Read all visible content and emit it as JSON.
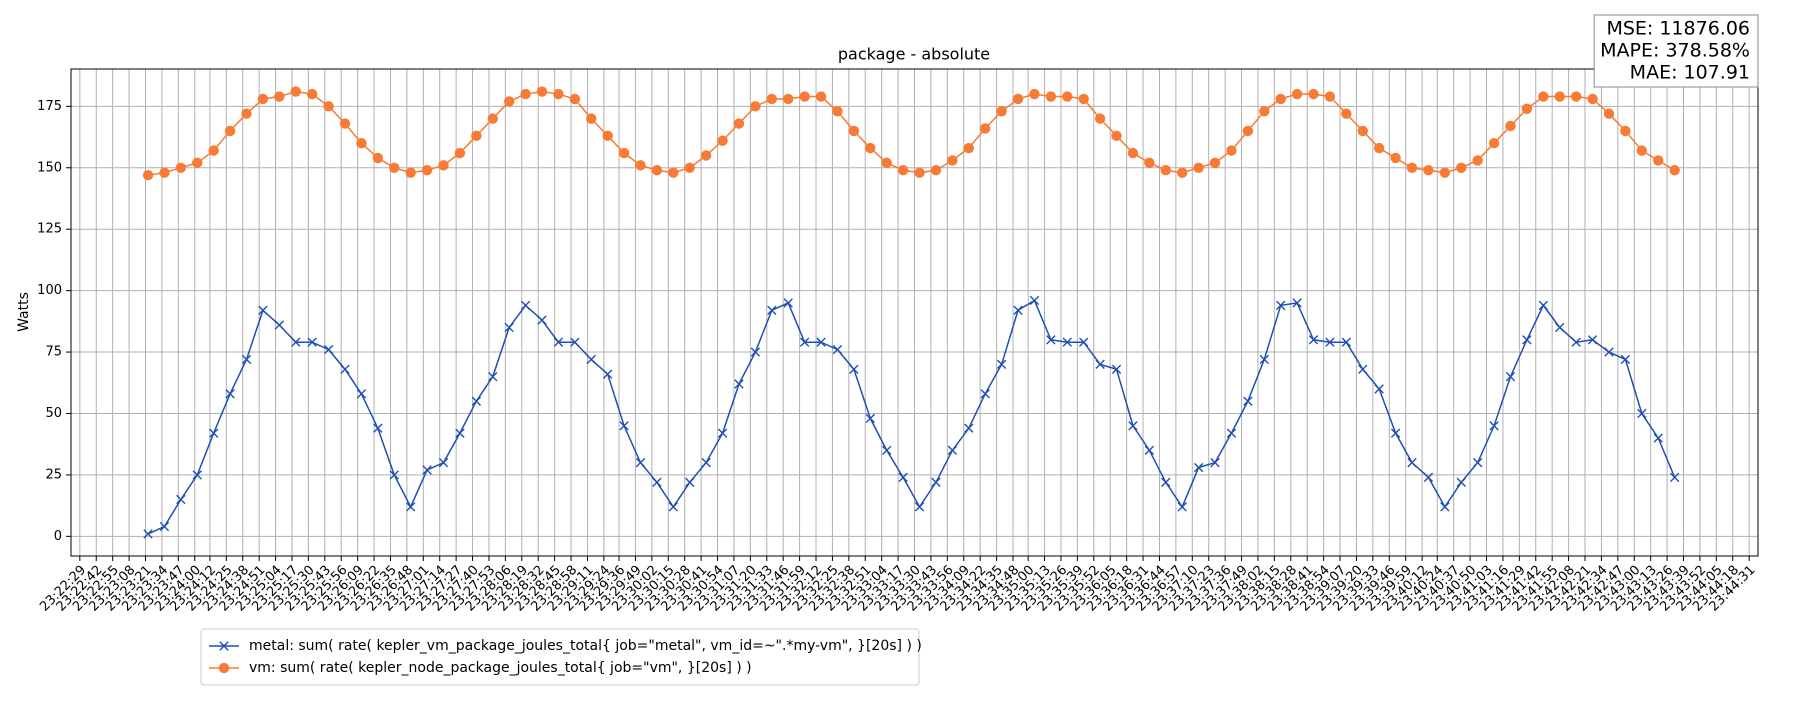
{
  "chart_data": {
    "type": "line",
    "title": "package - absolute",
    "y_label": "Watts",
    "annotation": [
      "MSE: 11876.06",
      "MAPE: 378.58%",
      "MAE: 107.91"
    ],
    "grid": true,
    "legend": "below",
    "xlim": [
      "23:22:22",
      "23:44:38"
    ],
    "ylim": [
      -8,
      190.2
    ],
    "yticks": [
      0,
      25,
      50,
      75,
      100,
      125,
      150,
      175
    ],
    "xticks": [
      "23:22:29",
      "23:22:42",
      "23:22:55",
      "23:23:08",
      "23:23:21",
      "23:23:34",
      "23:23:47",
      "23:24:00",
      "23:24:12",
      "23:24:25",
      "23:24:38",
      "23:24:51",
      "23:25:04",
      "23:25:17",
      "23:25:30",
      "23:25:43",
      "23:25:56",
      "23:26:09",
      "23:26:22",
      "23:26:35",
      "23:26:48",
      "23:27:01",
      "23:27:14",
      "23:27:27",
      "23:27:40",
      "23:27:53",
      "23:28:06",
      "23:28:19",
      "23:28:32",
      "23:28:45",
      "23:28:58",
      "23:29:11",
      "23:29:24",
      "23:29:36",
      "23:29:49",
      "23:30:02",
      "23:30:15",
      "23:30:28",
      "23:30:41",
      "23:30:54",
      "23:31:07",
      "23:31:20",
      "23:31:33",
      "23:31:46",
      "23:31:59",
      "23:32:12",
      "23:32:25",
      "23:32:38",
      "23:32:51",
      "23:33:04",
      "23:33:17",
      "23:33:30",
      "23:33:43",
      "23:33:56",
      "23:34:09",
      "23:34:22",
      "23:34:35",
      "23:34:48",
      "23:35:00",
      "23:35:13",
      "23:35:26",
      "23:35:39",
      "23:35:52",
      "23:36:05",
      "23:36:18",
      "23:36:31",
      "23:36:44",
      "23:36:57",
      "23:37:10",
      "23:37:23",
      "23:37:36",
      "23:37:49",
      "23:38:02",
      "23:38:15",
      "23:38:28",
      "23:38:41",
      "23:38:54",
      "23:39:07",
      "23:39:20",
      "23:39:33",
      "23:39:46",
      "23:39:59",
      "23:40:12",
      "23:40:24",
      "23:40:37",
      "23:40:50",
      "23:41:03",
      "23:41:16",
      "23:41:29",
      "23:41:42",
      "23:41:55",
      "23:42:08",
      "23:42:21",
      "23:42:34",
      "23:42:47",
      "23:43:00",
      "23:43:13",
      "23:43:26",
      "23:43:39",
      "23:43:52",
      "23:44:05",
      "23:44:18",
      "23:44:31"
    ],
    "x": [
      "23:23:23",
      "23:23:36",
      "23:23:49",
      "23:24:02",
      "23:24:15",
      "23:24:28",
      "23:24:41",
      "23:24:54",
      "23:25:07",
      "23:25:20",
      "23:25:33",
      "23:25:46",
      "23:25:59",
      "23:26:12",
      "23:26:25",
      "23:26:38",
      "23:26:51",
      "23:27:04",
      "23:27:17",
      "23:27:30",
      "23:27:43",
      "23:27:56",
      "23:28:09",
      "23:28:22",
      "23:28:35",
      "23:28:48",
      "23:29:01",
      "23:29:14",
      "23:29:27",
      "23:29:40",
      "23:29:53",
      "23:30:06",
      "23:30:19",
      "23:30:32",
      "23:30:45",
      "23:30:58",
      "23:31:11",
      "23:31:24",
      "23:31:37",
      "23:31:50",
      "23:32:03",
      "23:32:16",
      "23:32:29",
      "23:32:42",
      "23:32:55",
      "23:33:08",
      "23:33:21",
      "23:33:34",
      "23:33:47",
      "23:34:00",
      "23:34:13",
      "23:34:26",
      "23:34:39",
      "23:34:52",
      "23:35:05",
      "23:35:18",
      "23:35:31",
      "23:35:44",
      "23:35:57",
      "23:36:10",
      "23:36:23",
      "23:36:36",
      "23:36:49",
      "23:37:02",
      "23:37:15",
      "23:37:28",
      "23:37:41",
      "23:37:54",
      "23:38:07",
      "23:38:20",
      "23:38:33",
      "23:38:46",
      "23:38:59",
      "23:39:12",
      "23:39:25",
      "23:39:38",
      "23:39:51",
      "23:40:04",
      "23:40:17",
      "23:40:30",
      "23:40:43",
      "23:40:56",
      "23:41:09",
      "23:41:22",
      "23:41:35",
      "23:41:48",
      "23:42:01",
      "23:42:14",
      "23:42:27",
      "23:42:40",
      "23:42:53",
      "23:43:06",
      "23:43:19",
      "23:43:32"
    ],
    "series": [
      {
        "name": "metal: sum( rate( kepler_vm_package_joules_total{ job=\"metal\", vm_id=~\".*my-vm\", }[20s] ) )",
        "color": "#1f4fb4",
        "marker": "x",
        "values": [
          1,
          4,
          15,
          25,
          42,
          58,
          72,
          92,
          86,
          79,
          79,
          76,
          68,
          58,
          44,
          25,
          12,
          27,
          30,
          42,
          55,
          65,
          85,
          94,
          88,
          79,
          79,
          72,
          66,
          45,
          30,
          22,
          12,
          22,
          30,
          42,
          62,
          75,
          92,
          95,
          79,
          79,
          76,
          68,
          48,
          35,
          24,
          12,
          22,
          35,
          44,
          58,
          70,
          92,
          96,
          80,
          79,
          79,
          70,
          68,
          45,
          35,
          22,
          12,
          28,
          30,
          42,
          55,
          72,
          94,
          95,
          80,
          79,
          79,
          68,
          60,
          42,
          30,
          24,
          12,
          22,
          30,
          45,
          65,
          80,
          94,
          85,
          79,
          80,
          75,
          72,
          50,
          40,
          24
        ]
      },
      {
        "name": "vm: sum( rate( kepler_node_package_joules_total{ job=\"vm\", }[20s] ) )",
        "color": "#f77b35",
        "marker": "o",
        "values": [
          147,
          148,
          150,
          152,
          157,
          165,
          172,
          178,
          179,
          181,
          180,
          175,
          168,
          160,
          154,
          150,
          148,
          149,
          151,
          156,
          163,
          170,
          177,
          180,
          181,
          180,
          178,
          170,
          163,
          156,
          151,
          149,
          148,
          150,
          155,
          161,
          168,
          175,
          178,
          178,
          179,
          179,
          173,
          165,
          158,
          152,
          149,
          148,
          149,
          153,
          158,
          166,
          173,
          178,
          180,
          179,
          179,
          178,
          170,
          163,
          156,
          152,
          149,
          148,
          150,
          152,
          157,
          165,
          173,
          178,
          180,
          180,
          179,
          172,
          165,
          158,
          154,
          150,
          149,
          148,
          150,
          153,
          160,
          167,
          174,
          179,
          179,
          179,
          178,
          172,
          165,
          157,
          153,
          149
        ]
      }
    ]
  }
}
